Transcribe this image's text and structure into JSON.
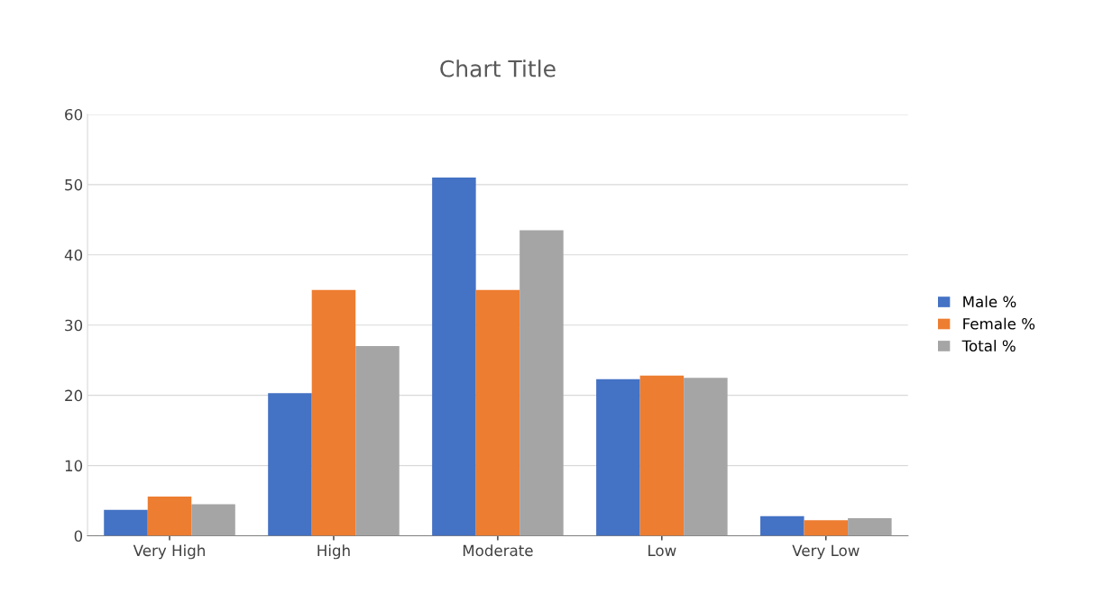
{
  "chart_data": {
    "type": "bar",
    "title": "Chart Title",
    "categories": [
      "Very High",
      "High",
      "Moderate",
      "Low",
      "Very Low"
    ],
    "series": [
      {
        "name": "Male %",
        "color": "#4472c4",
        "values": [
          3.7,
          20.3,
          51,
          22.3,
          2.8
        ]
      },
      {
        "name": "Female %",
        "color": "#ed7d31",
        "values": [
          5.6,
          35,
          35,
          22.8,
          2.2
        ]
      },
      {
        "name": "Total %",
        "color": "#a5a5a5",
        "values": [
          4.5,
          27,
          43.5,
          22.5,
          2.5
        ]
      }
    ],
    "ylim": [
      0,
      60
    ],
    "yticks": [
      0,
      10,
      20,
      30,
      40,
      50,
      60
    ],
    "grid": "y",
    "legend": "right"
  }
}
